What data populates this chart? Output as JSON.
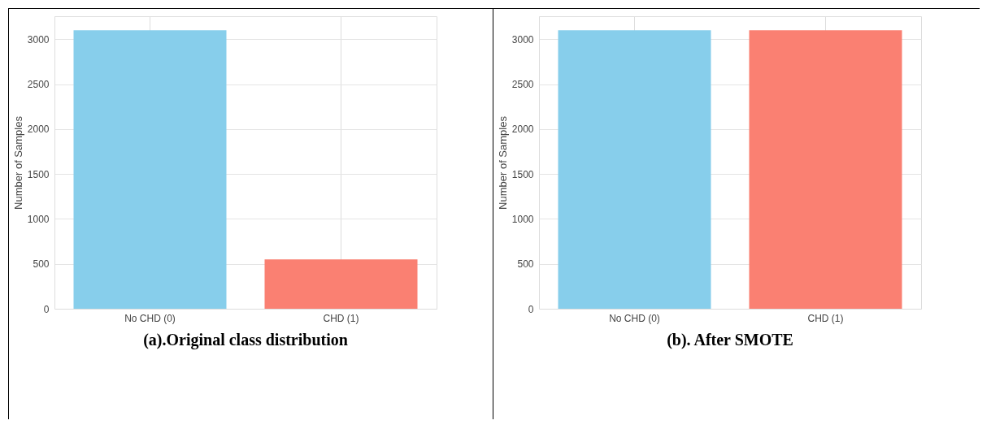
{
  "chart_data": [
    {
      "type": "bar",
      "title": "(a).Original class distribution",
      "ylabel": "Number of Samples",
      "categories": [
        "No CHD (0)",
        "CHD (1)"
      ],
      "values": [
        3100,
        550
      ],
      "colors": [
        "#87ceeb",
        "#fa8072"
      ],
      "ylim": [
        0,
        3255
      ],
      "yticks": [
        0,
        500,
        1000,
        1500,
        2000,
        2500,
        3000
      ],
      "grid": true
    },
    {
      "type": "bar",
      "title": "(b). After SMOTE",
      "ylabel": "Number of Samples",
      "categories": [
        "No CHD (0)",
        "CHD (1)"
      ],
      "values": [
        3100,
        3100
      ],
      "colors": [
        "#87ceeb",
        "#fa8072"
      ],
      "ylim": [
        0,
        3255
      ],
      "yticks": [
        0,
        500,
        1000,
        1500,
        2000,
        2500,
        3000
      ],
      "grid": true
    }
  ]
}
